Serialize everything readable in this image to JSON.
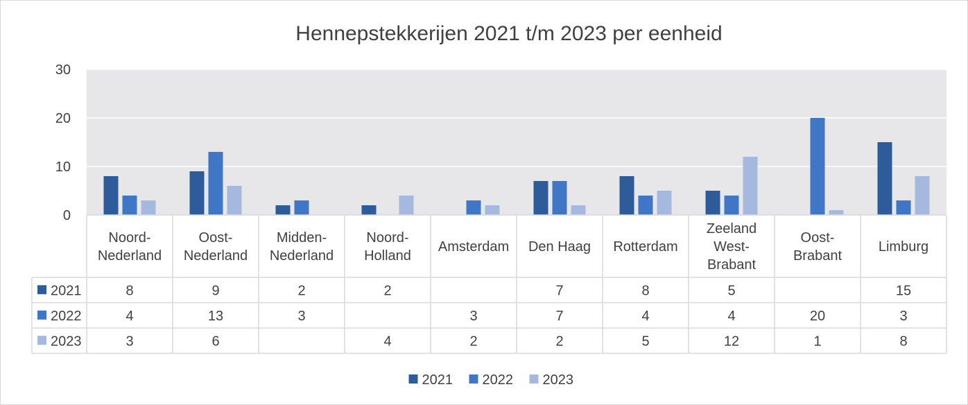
{
  "chart_data": {
    "type": "bar",
    "title": "Hennepstekkerijen 2021 t/m 2023 per eenheid",
    "xlabel": "",
    "ylabel": "",
    "ylim": [
      0,
      30
    ],
    "yticks": [
      0,
      10,
      20,
      30
    ],
    "grid": true,
    "legend": "bottom",
    "data_table": true,
    "categories": [
      [
        "Noord-",
        "Nederland"
      ],
      [
        "Oost-",
        "Nederland"
      ],
      [
        "Midden-",
        "Nederland"
      ],
      [
        "Noord-",
        "Holland"
      ],
      [
        "Amsterdam"
      ],
      [
        "Den Haag"
      ],
      [
        "Rotterdam"
      ],
      [
        "Zeeland",
        "West-",
        "Brabant"
      ],
      [
        "Oost-",
        "Brabant"
      ],
      [
        "Limburg"
      ]
    ],
    "series": [
      {
        "name": "2021",
        "color": "#2e5c9a",
        "values": [
          8,
          9,
          2,
          2,
          null,
          7,
          8,
          5,
          null,
          15
        ]
      },
      {
        "name": "2022",
        "color": "#3f77c6",
        "values": [
          4,
          13,
          3,
          null,
          3,
          7,
          4,
          4,
          20,
          3
        ]
      },
      {
        "name": "2023",
        "color": "#a5b8de",
        "values": [
          3,
          6,
          null,
          4,
          2,
          2,
          5,
          12,
          1,
          8
        ]
      }
    ],
    "colors": {
      "plot_background": "#e7e6e8",
      "gridline": "#ffffff",
      "table_border": "#d9d9d9",
      "text": "#404040"
    }
  }
}
